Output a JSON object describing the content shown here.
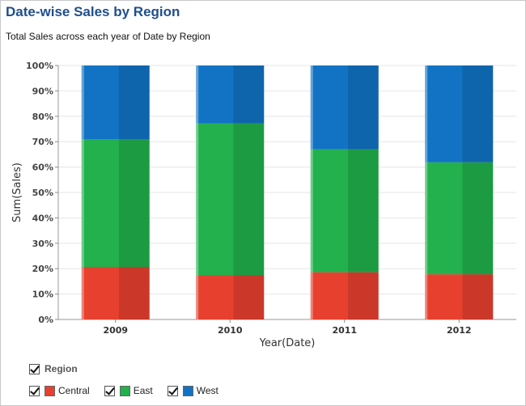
{
  "title": "Date-wise Sales by Region",
  "subtitle": "Total Sales across each year of Date by Region",
  "legend": {
    "heading": "Region",
    "items": [
      {
        "label": "Central",
        "color": "#e8402f"
      },
      {
        "label": "East",
        "color": "#22b14c"
      },
      {
        "label": "West",
        "color": "#1273c4"
      }
    ]
  },
  "chart_data": {
    "type": "bar",
    "stacked": true,
    "percent": true,
    "categories": [
      "2009",
      "2010",
      "2011",
      "2012"
    ],
    "xlabel": "Year(Date)",
    "ylabel": "Sum(Sales)",
    "ylim": [
      0,
      100
    ],
    "yticks": [
      "0%",
      "10%",
      "20%",
      "30%",
      "40%",
      "50%",
      "60%",
      "70%",
      "80%",
      "90%",
      "100%"
    ],
    "grid": true,
    "legend_position": "bottom-left",
    "series": [
      {
        "name": "Central",
        "color": "#e8402f",
        "values": [
          20.7,
          17.5,
          18.6,
          17.8
        ]
      },
      {
        "name": "East",
        "color": "#22b14c",
        "values": [
          50.2,
          59.7,
          48.4,
          44.1
        ]
      },
      {
        "name": "West",
        "color": "#1273c4",
        "values": [
          29.1,
          22.8,
          33.0,
          38.1
        ]
      }
    ]
  }
}
